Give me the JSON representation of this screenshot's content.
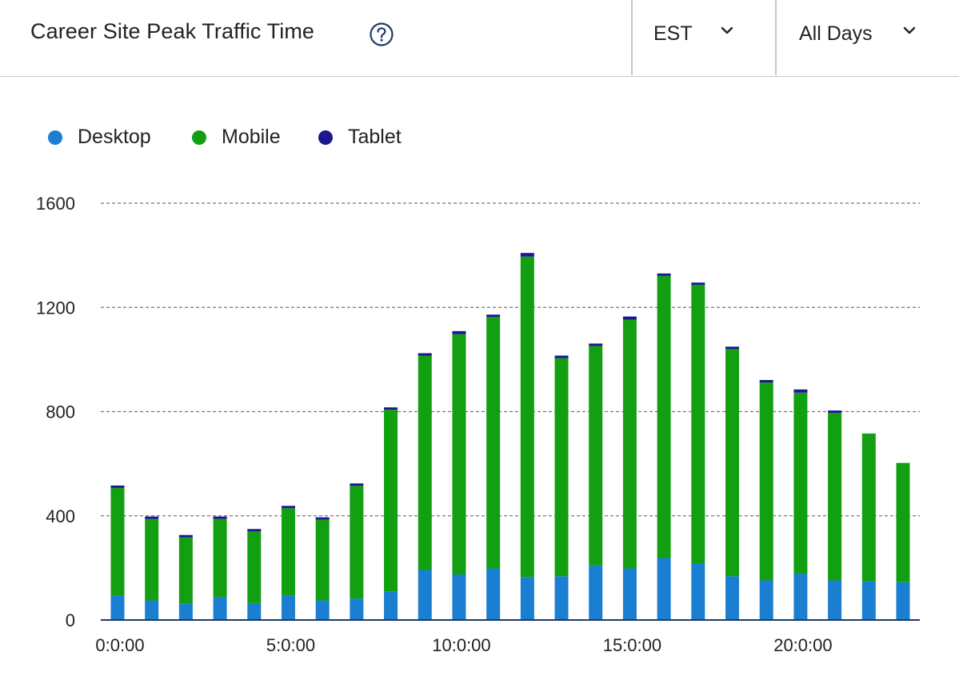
{
  "header": {
    "title": "Career Site Peak Traffic Time",
    "help_icon": "question-circle-icon",
    "timezone_select": {
      "value": "EST",
      "icon": "chevron-down-icon"
    },
    "days_select": {
      "value": "All Days",
      "icon": "chevron-down-icon"
    }
  },
  "legend": [
    {
      "label": "Desktop",
      "color": "#1a7fd0"
    },
    {
      "label": "Mobile",
      "color": "#12a012"
    },
    {
      "label": "Tablet",
      "color": "#1c1690"
    }
  ],
  "chart_data": {
    "type": "bar",
    "stacked": true,
    "categories": [
      "0:0:00",
      "1:0:00",
      "2:0:00",
      "3:0:00",
      "4:0:00",
      "5:0:00",
      "6:0:00",
      "7:0:00",
      "8:0:00",
      "9:0:00",
      "10:0:00",
      "11:0:00",
      "12:0:00",
      "13:0:00",
      "14:0:00",
      "15:0:00",
      "16:0:00",
      "17:0:00",
      "18:0:00",
      "19:0:00",
      "20:0:00",
      "21:0:00",
      "22:0:00",
      "23:0:00"
    ],
    "tick_labels": [
      "0:0:00",
      "5:0:00",
      "10:0:00",
      "15:0:00",
      "20:0:00"
    ],
    "tick_indices": [
      0,
      5,
      10,
      15,
      20
    ],
    "series": [
      {
        "name": "Desktop",
        "color": "#1a7fd0",
        "values": [
          95,
          75,
          62,
          88,
          65,
          95,
          75,
          82,
          110,
          192,
          175,
          198,
          165,
          168,
          210,
          198,
          238,
          218,
          168,
          152,
          178,
          152,
          148,
          145
        ]
      },
      {
        "name": "Mobile",
        "color": "#12a012",
        "values": [
          412,
          313,
          255,
          300,
          275,
          334,
          310,
          433,
          697,
          823,
          922,
          965,
          1230,
          837,
          842,
          955,
          1083,
          1068,
          872,
          760,
          695,
          643,
          568,
          458
        ]
      },
      {
        "name": "Tablet",
        "color": "#1c1690",
        "values": [
          5,
          3,
          2,
          4,
          4,
          6,
          5,
          6,
          5,
          8,
          12,
          7,
          14,
          10,
          6,
          12,
          8,
          6,
          7,
          6,
          12,
          5,
          0,
          0
        ]
      }
    ],
    "yticks": [
      0,
      400,
      800,
      1200,
      1600
    ],
    "ylim": [
      0,
      1600
    ],
    "grid": true,
    "legend_position": "top-left",
    "title": "",
    "xlabel": "",
    "ylabel": ""
  }
}
